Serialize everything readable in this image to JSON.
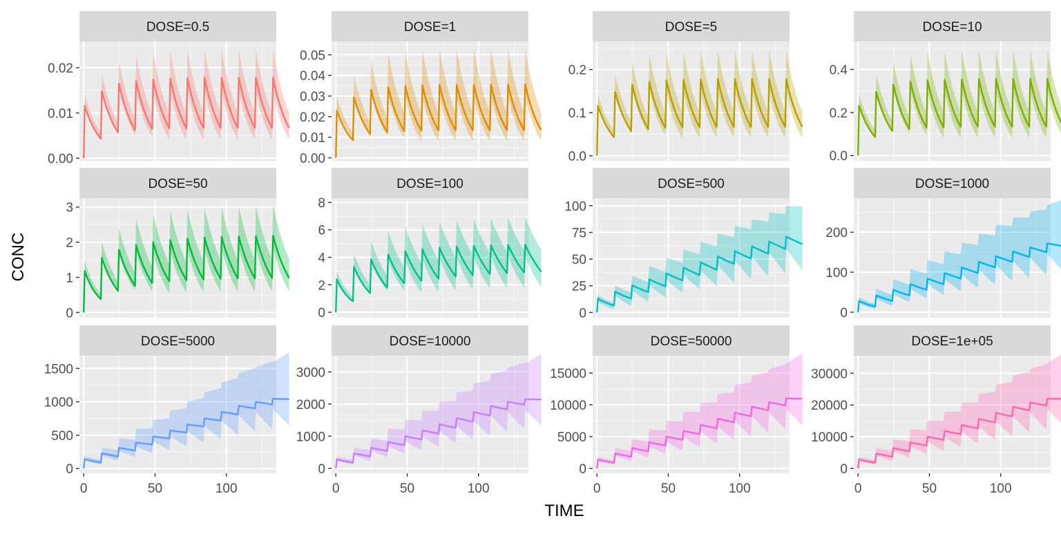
{
  "figure": {
    "xlabel": "TIME",
    "ylabel": "CONC"
  },
  "chart_data": {
    "type": "line",
    "layout": "facet-grid 3 rows x 4 columns, free y scales",
    "legend": "none",
    "grid": true,
    "band": "shaded interval ribbon around each median line",
    "dosing": {
      "interval": 12,
      "n_doses": 12,
      "t_start": 0,
      "t_end": 132
    },
    "x_axis": {
      "label": "TIME",
      "range": [
        -3,
        135
      ],
      "ticks": [
        0,
        50,
        100
      ],
      "shown_on_row": 3
    },
    "y_axis": {
      "label": "CONC"
    },
    "panels": [
      {
        "strip": "DOSE=0.5",
        "color": "#F8766D",
        "ylim": [
          -0.0006,
          0.0258
        ],
        "yticks": [
          0,
          0.01,
          0.02
        ],
        "ytick_labels": [
          "0.00",
          "0.01",
          "0.02"
        ],
        "median_peaks": [
          0.0116,
          0.0148,
          0.0165,
          0.0171,
          0.0174,
          0.0176,
          0.0177,
          0.0178,
          0.0178,
          0.0178,
          0.0178,
          0.0178
        ],
        "median_troughs": [
          0.0043,
          0.0057,
          0.0062,
          0.0065,
          0.0066,
          0.0066,
          0.0067,
          0.0067,
          0.0067,
          0.0067,
          0.0067,
          0.0067
        ],
        "band_upper_peak": 0.024,
        "band_lower_trough": 0.0045
      },
      {
        "strip": "DOSE=1",
        "color": "#DE8C00",
        "ylim": [
          -0.0015,
          0.0565
        ],
        "yticks": [
          0,
          0.01,
          0.02,
          0.03,
          0.04,
          0.05
        ],
        "ytick_labels": [
          "0.00",
          "0.01",
          "0.02",
          "0.03",
          "0.04",
          "0.05"
        ],
        "median_peaks": [
          0.023,
          0.0295,
          0.033,
          0.0343,
          0.0348,
          0.0352,
          0.0354,
          0.0355,
          0.0355,
          0.0356,
          0.0356,
          0.0356
        ],
        "median_troughs": [
          0.0085,
          0.0115,
          0.0125,
          0.013,
          0.0132,
          0.0133,
          0.0134,
          0.0134,
          0.0134,
          0.0134,
          0.0134,
          0.0134
        ],
        "band_upper_peak": 0.053,
        "band_lower_trough": 0.0095
      },
      {
        "strip": "DOSE=5",
        "color": "#B79F00",
        "ylim": [
          -0.012,
          0.265
        ],
        "yticks": [
          0,
          0.1,
          0.2
        ],
        "ytick_labels": [
          "0.0",
          "0.1",
          "0.2"
        ],
        "median_peaks": [
          0.116,
          0.148,
          0.165,
          0.172,
          0.175,
          0.176,
          0.177,
          0.178,
          0.178,
          0.178,
          0.178,
          0.178
        ],
        "median_troughs": [
          0.043,
          0.057,
          0.062,
          0.065,
          0.066,
          0.066,
          0.067,
          0.067,
          0.067,
          0.067,
          0.067,
          0.067
        ],
        "band_upper_peak": 0.245,
        "band_lower_trough": 0.045
      },
      {
        "strip": "DOSE=10",
        "color": "#7CAE00",
        "ylim": [
          -0.025,
          0.53
        ],
        "yticks": [
          0,
          0.2,
          0.4
        ],
        "ytick_labels": [
          "0.0",
          "0.2",
          "0.4"
        ],
        "median_peaks": [
          0.232,
          0.296,
          0.33,
          0.344,
          0.35,
          0.352,
          0.354,
          0.355,
          0.356,
          0.356,
          0.356,
          0.356
        ],
        "median_troughs": [
          0.086,
          0.114,
          0.124,
          0.13,
          0.132,
          0.133,
          0.134,
          0.134,
          0.134,
          0.134,
          0.134,
          0.134
        ],
        "band_upper_peak": 0.49,
        "band_lower_trough": 0.09
      },
      {
        "strip": "DOSE=50",
        "color": "#00BA38",
        "ylim": [
          -0.15,
          3.25
        ],
        "yticks": [
          0,
          1,
          2,
          3
        ],
        "ytick_labels": [
          "0",
          "1",
          "2",
          "3"
        ],
        "median_peaks": [
          1.18,
          1.56,
          1.78,
          1.92,
          2.0,
          2.06,
          2.1,
          2.13,
          2.15,
          2.16,
          2.17,
          2.18
        ],
        "median_troughs": [
          0.38,
          0.62,
          0.76,
          0.84,
          0.89,
          0.92,
          0.94,
          0.96,
          0.97,
          0.97,
          0.98,
          0.98
        ],
        "band_upper_peak": 3.05,
        "band_lower_trough": 0.4
      },
      {
        "strip": "DOSE=100",
        "color": "#00C08B",
        "ylim": [
          -0.4,
          8.3
        ],
        "yticks": [
          0,
          2,
          4,
          6,
          8
        ],
        "ytick_labels": [
          "0",
          "2",
          "4",
          "6",
          "8"
        ],
        "median_peaks": [
          2.4,
          3.3,
          3.85,
          4.2,
          4.45,
          4.6,
          4.7,
          4.78,
          4.83,
          4.87,
          4.9,
          4.92
        ],
        "median_troughs": [
          0.8,
          1.4,
          1.8,
          2.1,
          2.3,
          2.45,
          2.6,
          2.7,
          2.78,
          2.85,
          2.9,
          2.95
        ],
        "band_upper_peak": 6.9,
        "band_lower_trough": 0.9
      },
      {
        "strip": "DOSE=500",
        "color": "#00BFC4",
        "ylim": [
          -5,
          107
        ],
        "yticks": [
          0,
          25,
          50,
          75,
          100
        ],
        "ytick_labels": [
          "0",
          "25",
          "50",
          "75",
          "100"
        ],
        "median_peaks": [
          13,
          19.5,
          25.5,
          31,
          36.5,
          42,
          47,
          52.5,
          57.5,
          62,
          66.5,
          71
        ],
        "median_troughs": [
          6.5,
          13,
          19,
          24.5,
          30,
          35,
          40,
          45.5,
          50.5,
          55,
          59.5,
          64
        ],
        "band_upper_peak": 100,
        "band_lower_trough": 3
      },
      {
        "strip": "DOSE=1000",
        "color": "#00B4EF",
        "ylim": [
          -14,
          285
        ],
        "yticks": [
          0,
          100,
          200
        ],
        "ytick_labels": [
          "0",
          "100",
          "200"
        ],
        "median_peaks": [
          28,
          42,
          56,
          70,
          84,
          98,
          112,
          126,
          140,
          152,
          162,
          172
        ],
        "median_troughs": [
          14,
          28,
          42,
          56,
          70,
          84,
          98,
          112,
          126,
          138,
          150,
          165
        ],
        "band_upper_peak": 268,
        "band_lower_trough": 8
      },
      {
        "strip": "DOSE=5000",
        "color": "#619CFF",
        "ylim": [
          -70,
          1690
        ],
        "yticks": [
          0,
          500,
          1000,
          1500
        ],
        "ytick_labels": [
          "0",
          "500",
          "1000",
          "1500"
        ],
        "median_peaks": [
          140,
          230,
          310,
          390,
          480,
          570,
          660,
          750,
          850,
          940,
          1000,
          1045
        ],
        "median_troughs": [
          90,
          180,
          270,
          360,
          450,
          540,
          630,
          720,
          810,
          900,
          960,
          1040
        ],
        "band_upper_peak": 1590,
        "band_lower_trough": 60
      },
      {
        "strip": "DOSE=10000",
        "color": "#C77CFF",
        "ylim": [
          -150,
          3500
        ],
        "yticks": [
          0,
          1000,
          2000,
          3000
        ],
        "ytick_labels": [
          "0",
          "1000",
          "2000",
          "3000"
        ],
        "median_peaks": [
          280,
          470,
          640,
          820,
          1000,
          1180,
          1370,
          1560,
          1750,
          1940,
          2070,
          2150
        ],
        "median_troughs": [
          180,
          370,
          540,
          720,
          900,
          1080,
          1260,
          1450,
          1640,
          1830,
          1980,
          2140
        ],
        "band_upper_peak": 3250,
        "band_lower_trough": 120
      },
      {
        "strip": "DOSE=50000",
        "color": "#F564E3",
        "ylim": [
          -750,
          17700
        ],
        "yticks": [
          0,
          5000,
          10000,
          15000
        ],
        "ytick_labels": [
          "0",
          "5000",
          "10000",
          "15000"
        ],
        "median_peaks": [
          1400,
          2350,
          3200,
          4100,
          5000,
          5900,
          6850,
          7800,
          8750,
          9700,
          10400,
          11000
        ],
        "median_troughs": [
          900,
          1850,
          2700,
          3600,
          4500,
          5400,
          6300,
          7250,
          8200,
          9150,
          9900,
          10950
        ],
        "band_upper_peak": 16500,
        "band_lower_trough": 600
      },
      {
        "strip": "DOSE=1e+05",
        "color": "#FF64B0",
        "ylim": [
          -1500,
          35500
        ],
        "yticks": [
          0,
          10000,
          20000,
          30000
        ],
        "ytick_labels": [
          "0",
          "10000",
          "20000",
          "30000"
        ],
        "median_peaks": [
          2800,
          4700,
          6400,
          8200,
          10000,
          11800,
          13700,
          15600,
          17500,
          19400,
          20800,
          22000
        ],
        "median_troughs": [
          1800,
          3700,
          5400,
          7200,
          9000,
          10800,
          12600,
          14500,
          16400,
          18300,
          19800,
          21900
        ],
        "band_upper_peak": 33200,
        "band_lower_trough": 1200
      }
    ]
  }
}
